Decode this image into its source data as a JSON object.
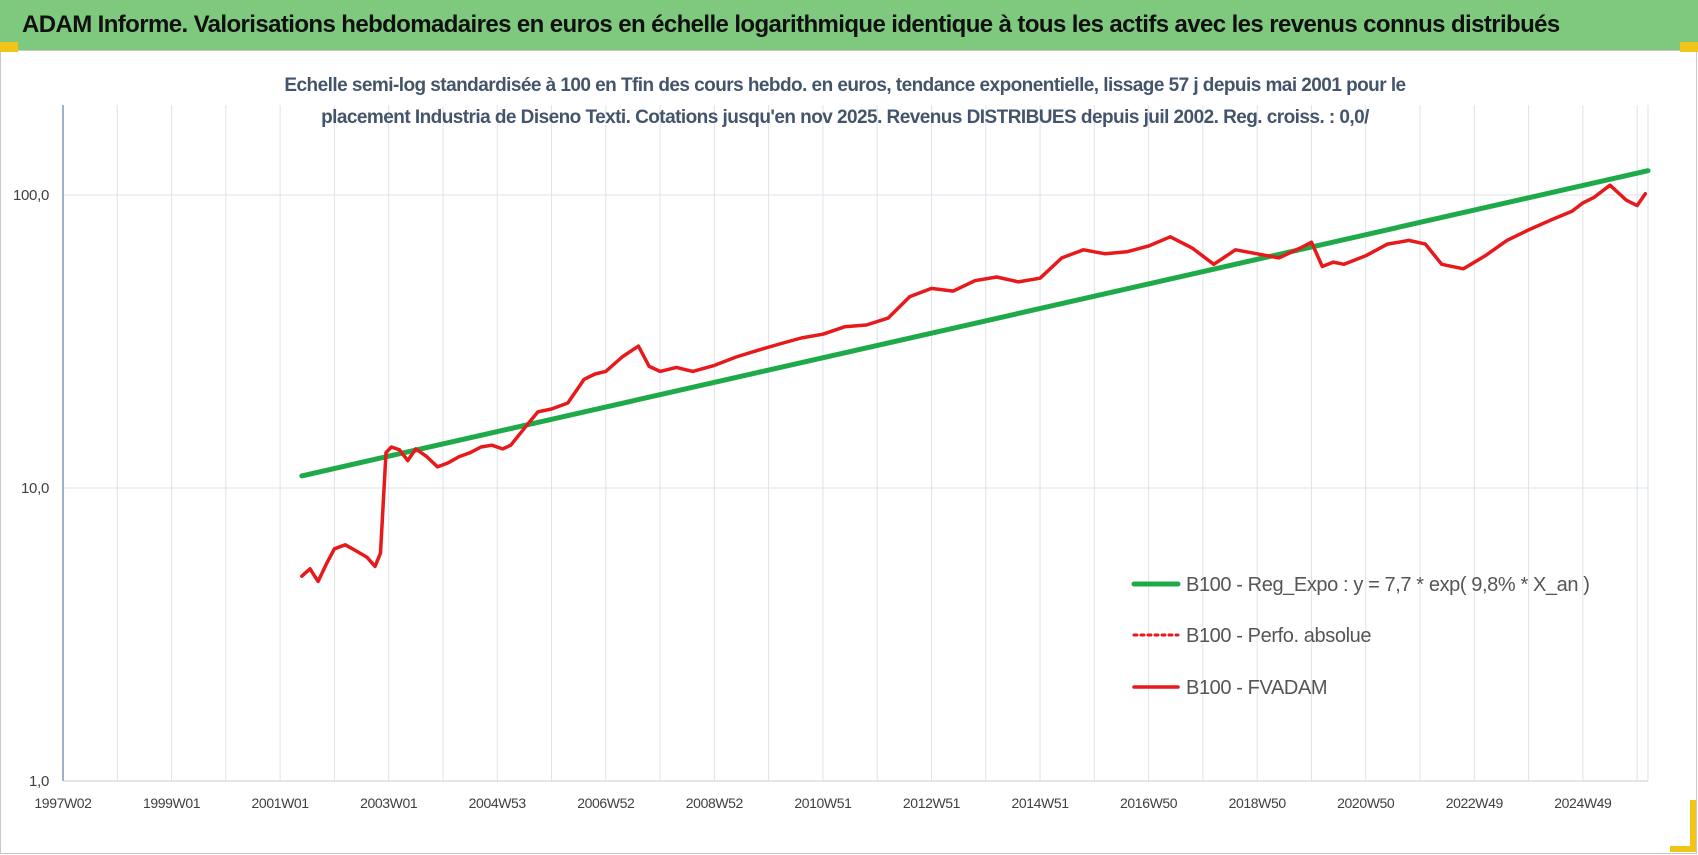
{
  "header": {
    "title": "ADAM Informe. Valorisations hebdomadaires en euros en échelle logarithmique identique à tous les actifs avec les revenus connus distribués"
  },
  "colors": {
    "banner": "#7fc97f",
    "corner": "#f2c418",
    "trend": "#1faa4a",
    "fvadam": "#e8191b",
    "perfo": "#e8191b",
    "grid": "#dde3ea",
    "axis": "#5b7ea8"
  },
  "chart_data": {
    "type": "line",
    "title_lines": [
      "Echelle semi-log standardisée à 100 en Tfin des cours hebdo. en euros, tendance exponentielle, lissage 57 j depuis mai 2001 pour le",
      "placement Industria de Diseno Texti. Cotations jusqu'en nov 2025. Revenus DISTRIBUES depuis juil 2002. Reg. croiss. : 0,0/"
    ],
    "y_scale": "log",
    "ylim": [
      1,
      200
    ],
    "y_ticks": [
      {
        "value": 1,
        "label": "1,0"
      },
      {
        "value": 10,
        "label": "10,0"
      },
      {
        "value": 100,
        "label": "100,0"
      }
    ],
    "xlim": [
      1997.0,
      2026.2
    ],
    "x_ticks": [
      {
        "value": 1997.0,
        "label": "1997W02"
      },
      {
        "value": 1999.0,
        "label": "1999W01"
      },
      {
        "value": 2001.0,
        "label": "2001W01"
      },
      {
        "value": 2003.0,
        "label": "2003W01"
      },
      {
        "value": 2005.0,
        "label": "2004W53"
      },
      {
        "value": 2007.0,
        "label": "2006W52"
      },
      {
        "value": 2009.0,
        "label": "2008W52"
      },
      {
        "value": 2011.0,
        "label": "2010W51"
      },
      {
        "value": 2013.0,
        "label": "2012W51"
      },
      {
        "value": 2015.0,
        "label": "2014W51"
      },
      {
        "value": 2017.0,
        "label": "2016W50"
      },
      {
        "value": 2019.0,
        "label": "2018W50"
      },
      {
        "value": 2021.0,
        "label": "2020W50"
      },
      {
        "value": 2023.0,
        "label": "2022W49"
      },
      {
        "value": 2025.0,
        "label": "2024W49"
      }
    ],
    "grid": true,
    "legend_position": "right",
    "series": [
      {
        "name": "B100 - Reg_Expo : y = 7,7 * exp( 9,8% *  X_an )",
        "style": "solid-green",
        "x": [
          2001.4,
          2026.2
        ],
        "y": [
          11.0,
          121.0
        ]
      },
      {
        "name": "B100 - Perfo. absolue",
        "style": "dotted-red",
        "x": [],
        "y": []
      },
      {
        "name": "B100 - FVADAM",
        "style": "solid-red",
        "x": [
          2001.4,
          2001.55,
          2001.7,
          2001.85,
          2002.0,
          2002.2,
          2002.4,
          2002.6,
          2002.75,
          2002.85,
          2002.95,
          2003.05,
          2003.2,
          2003.35,
          2003.5,
          2003.7,
          2003.9,
          2004.1,
          2004.3,
          2004.5,
          2004.7,
          2004.9,
          2005.1,
          2005.25,
          2005.5,
          2005.75,
          2006.0,
          2006.3,
          2006.6,
          2006.8,
          2007.0,
          2007.3,
          2007.6,
          2007.8,
          2008.0,
          2008.3,
          2008.6,
          2009.0,
          2009.4,
          2009.8,
          2010.2,
          2010.6,
          2011.0,
          2011.4,
          2011.8,
          2012.2,
          2012.6,
          2013.0,
          2013.4,
          2013.8,
          2014.2,
          2014.6,
          2015.0,
          2015.4,
          2015.8,
          2016.2,
          2016.6,
          2017.0,
          2017.4,
          2017.8,
          2018.2,
          2018.6,
          2019.0,
          2019.4,
          2019.8,
          2020.0,
          2020.2,
          2020.4,
          2020.6,
          2021.0,
          2021.4,
          2021.8,
          2022.1,
          2022.4,
          2022.8,
          2023.2,
          2023.6,
          2024.0,
          2024.4,
          2024.8,
          2025.0,
          2025.2,
          2025.5,
          2025.8,
          2026.0,
          2026.15
        ],
        "y": [
          5.0,
          5.3,
          4.8,
          5.5,
          6.2,
          6.4,
          6.1,
          5.8,
          5.4,
          6.0,
          13.2,
          13.8,
          13.5,
          12.4,
          13.6,
          12.8,
          11.8,
          12.2,
          12.8,
          13.2,
          13.8,
          14.0,
          13.6,
          14.0,
          16.0,
          18.2,
          18.6,
          19.5,
          23.5,
          24.5,
          25.0,
          28.0,
          30.5,
          26.0,
          25.0,
          25.8,
          25.0,
          26.2,
          28.0,
          29.5,
          31.0,
          32.5,
          33.5,
          35.5,
          36.0,
          38.0,
          45.0,
          48.0,
          47.0,
          51.0,
          52.5,
          50.5,
          52.0,
          61.0,
          65.0,
          63.0,
          64.0,
          67.0,
          72.0,
          66.0,
          58.0,
          65.0,
          63.0,
          61.0,
          66.0,
          69.0,
          57.0,
          59.0,
          58.0,
          62.0,
          68.0,
          70.0,
          68.0,
          58.0,
          56.0,
          62.0,
          70.0,
          76.0,
          82.0,
          88.0,
          94.0,
          98.0,
          108.0,
          96.0,
          92.0,
          101.0
        ]
      }
    ]
  }
}
